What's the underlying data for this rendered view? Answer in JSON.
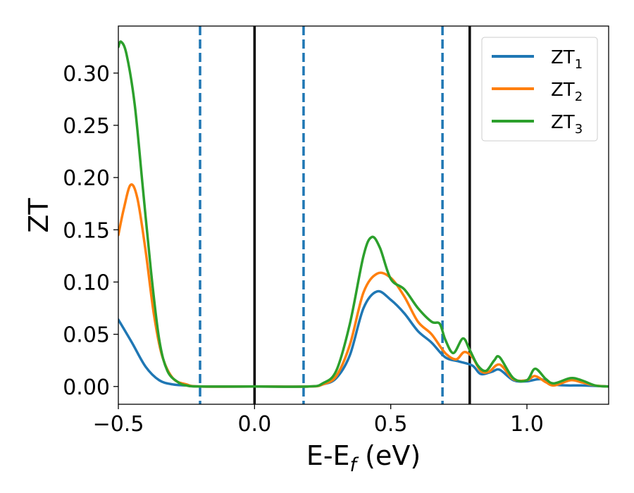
{
  "chart_data": {
    "type": "line",
    "title": "",
    "xlabel": {
      "main": "E-E",
      "sub": "f",
      "unit": " (eV)"
    },
    "ylabel": "ZT",
    "xlim": [
      -0.5,
      1.3
    ],
    "ylim": [
      -0.017,
      0.345
    ],
    "xticks": [
      {
        "value": -0.5,
        "label": "−0.5"
      },
      {
        "value": 0.0,
        "label": "0.0"
      },
      {
        "value": 0.5,
        "label": "0.5"
      },
      {
        "value": 1.0,
        "label": "1.0"
      }
    ],
    "yticks": [
      {
        "value": 0.0,
        "label": "0.00"
      },
      {
        "value": 0.05,
        "label": "0.05"
      },
      {
        "value": 0.1,
        "label": "0.10"
      },
      {
        "value": 0.15,
        "label": "0.15"
      },
      {
        "value": 0.2,
        "label": "0.20"
      },
      {
        "value": 0.25,
        "label": "0.25"
      },
      {
        "value": 0.3,
        "label": "0.30"
      }
    ],
    "grid": false,
    "legend_position": "top-right",
    "vertical_lines": [
      {
        "x": -0.2,
        "style": "dashed",
        "color": "#1f77b4"
      },
      {
        "x": 0.0,
        "style": "solid",
        "color": "#000000"
      },
      {
        "x": 0.18,
        "style": "dashed",
        "color": "#1f77b4"
      },
      {
        "x": 0.69,
        "style": "dashed",
        "color": "#1f77b4"
      },
      {
        "x": 0.79,
        "style": "solid",
        "color": "#000000"
      }
    ],
    "series": [
      {
        "name": "ZT",
        "sub": "1",
        "color": "#1f77b4",
        "points": [
          [
            -0.5,
            0.064
          ],
          [
            -0.45,
            0.042
          ],
          [
            -0.4,
            0.019
          ],
          [
            -0.35,
            0.006
          ],
          [
            -0.3,
            0.002
          ],
          [
            -0.25,
            0.001
          ],
          [
            -0.2,
            0.0
          ],
          [
            0.0,
            0.0
          ],
          [
            0.2,
            0.0
          ],
          [
            0.25,
            0.002
          ],
          [
            0.3,
            0.008
          ],
          [
            0.35,
            0.03
          ],
          [
            0.4,
            0.075
          ],
          [
            0.45,
            0.091
          ],
          [
            0.5,
            0.083
          ],
          [
            0.55,
            0.07
          ],
          [
            0.6,
            0.053
          ],
          [
            0.65,
            0.042
          ],
          [
            0.7,
            0.028
          ],
          [
            0.75,
            0.024
          ],
          [
            0.8,
            0.02
          ],
          [
            0.83,
            0.012
          ],
          [
            0.87,
            0.014
          ],
          [
            0.9,
            0.016
          ],
          [
            0.95,
            0.006
          ],
          [
            1.0,
            0.005
          ],
          [
            1.05,
            0.007
          ],
          [
            1.1,
            0.002
          ],
          [
            1.15,
            0.001
          ],
          [
            1.2,
            0.001
          ],
          [
            1.3,
            0.0
          ]
        ]
      },
      {
        "name": "ZT",
        "sub": "2",
        "color": "#ff7f0e",
        "points": [
          [
            -0.5,
            0.145
          ],
          [
            -0.48,
            0.17
          ],
          [
            -0.455,
            0.193
          ],
          [
            -0.43,
            0.18
          ],
          [
            -0.4,
            0.13
          ],
          [
            -0.37,
            0.07
          ],
          [
            -0.34,
            0.03
          ],
          [
            -0.3,
            0.008
          ],
          [
            -0.25,
            0.002
          ],
          [
            -0.2,
            0.0
          ],
          [
            0.0,
            0.0
          ],
          [
            0.2,
            0.0
          ],
          [
            0.25,
            0.002
          ],
          [
            0.3,
            0.01
          ],
          [
            0.35,
            0.04
          ],
          [
            0.4,
            0.09
          ],
          [
            0.45,
            0.108
          ],
          [
            0.5,
            0.104
          ],
          [
            0.55,
            0.086
          ],
          [
            0.6,
            0.062
          ],
          [
            0.65,
            0.05
          ],
          [
            0.7,
            0.032
          ],
          [
            0.74,
            0.026
          ],
          [
            0.77,
            0.033
          ],
          [
            0.8,
            0.028
          ],
          [
            0.83,
            0.015
          ],
          [
            0.86,
            0.014
          ],
          [
            0.9,
            0.021
          ],
          [
            0.95,
            0.007
          ],
          [
            1.0,
            0.006
          ],
          [
            1.03,
            0.01
          ],
          [
            1.07,
            0.004
          ],
          [
            1.1,
            0.001
          ],
          [
            1.16,
            0.006
          ],
          [
            1.2,
            0.004
          ],
          [
            1.25,
            0.001
          ],
          [
            1.3,
            0.0
          ]
        ]
      },
      {
        "name": "ZT",
        "sub": "3",
        "color": "#2ca02c",
        "points": [
          [
            -0.5,
            0.325
          ],
          [
            -0.49,
            0.33
          ],
          [
            -0.47,
            0.318
          ],
          [
            -0.44,
            0.27
          ],
          [
            -0.41,
            0.19
          ],
          [
            -0.38,
            0.11
          ],
          [
            -0.35,
            0.045
          ],
          [
            -0.32,
            0.015
          ],
          [
            -0.28,
            0.004
          ],
          [
            -0.25,
            0.001
          ],
          [
            -0.2,
            0.0
          ],
          [
            0.0,
            0.0
          ],
          [
            0.2,
            0.0
          ],
          [
            0.25,
            0.003
          ],
          [
            0.3,
            0.015
          ],
          [
            0.35,
            0.06
          ],
          [
            0.4,
            0.125
          ],
          [
            0.43,
            0.143
          ],
          [
            0.46,
            0.133
          ],
          [
            0.5,
            0.103
          ],
          [
            0.55,
            0.093
          ],
          [
            0.6,
            0.075
          ],
          [
            0.65,
            0.062
          ],
          [
            0.68,
            0.06
          ],
          [
            0.7,
            0.045
          ],
          [
            0.73,
            0.032
          ],
          [
            0.765,
            0.046
          ],
          [
            0.79,
            0.035
          ],
          [
            0.82,
            0.02
          ],
          [
            0.85,
            0.015
          ],
          [
            0.88,
            0.025
          ],
          [
            0.9,
            0.028
          ],
          [
            0.95,
            0.008
          ],
          [
            1.0,
            0.006
          ],
          [
            1.03,
            0.017
          ],
          [
            1.07,
            0.007
          ],
          [
            1.1,
            0.003
          ],
          [
            1.16,
            0.008
          ],
          [
            1.2,
            0.006
          ],
          [
            1.25,
            0.001
          ],
          [
            1.3,
            0.0
          ]
        ]
      }
    ]
  }
}
